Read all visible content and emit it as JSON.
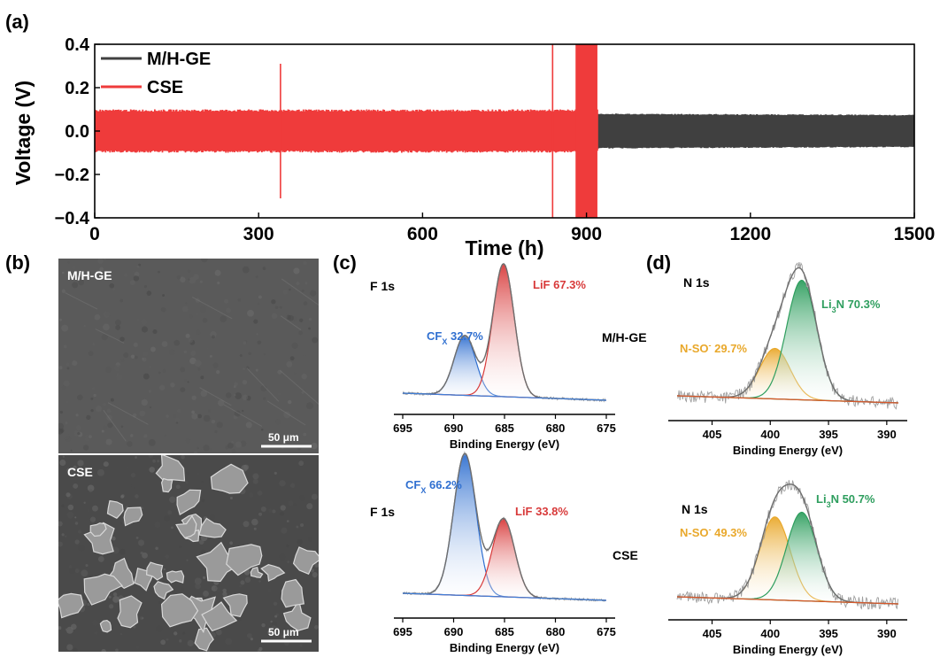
{
  "panel_labels": {
    "a": "(a)",
    "b": "(b)",
    "c": "(c)",
    "d": "(d)"
  },
  "colors": {
    "mhge": "#404040",
    "cse": "#ef3b3b",
    "blue": "#2f6fd0",
    "red": "#d83a3a",
    "orange": "#e9a82b",
    "green": "#2e9e5e",
    "raw": "#9e9e9e",
    "envelope": "#6e6e6e",
    "baseline": "#d9572a",
    "f_base": "#3f7fd8"
  },
  "chart_data": [
    {
      "type": "line",
      "panel": "(a)",
      "xlabel": "Time (h)",
      "ylabel": "Voltage (V)",
      "xlim": [
        0,
        1500
      ],
      "ylim": [
        -0.4,
        0.4
      ],
      "xticks": [
        "0",
        "300",
        "600",
        "900",
        "1200",
        "1500"
      ],
      "yticks": [
        "0.4",
        "0.2",
        "0.0",
        "−0.2",
        "−0.4"
      ],
      "legend_position": "top-left",
      "series": [
        {
          "name": "M/H-GE",
          "color": "#404040",
          "x": [
            0,
            1500
          ],
          "amplitude": [
            0.09,
            0.075
          ]
        },
        {
          "name": "CSE",
          "color": "#ef3b3b",
          "x": [
            0,
            920
          ],
          "amplitude": [
            0.1,
            0.1
          ],
          "spikes": [
            {
              "x": 340,
              "y": 0.31
            },
            {
              "x": 838,
              "y": 0.42
            },
            {
              "x": 895,
              "y": 0.42
            }
          ]
        }
      ]
    },
    {
      "type": "image",
      "panel": "(b)",
      "images": [
        {
          "label": "M/H-GE",
          "scale_bar": "50 μm"
        },
        {
          "label": "CSE",
          "scale_bar": "50 μm"
        }
      ]
    },
    {
      "type": "line",
      "panel": "(c)",
      "xlabel": "Binding Energy (eV)",
      "xlim": [
        695,
        675
      ],
      "xticks": [
        "695",
        "690",
        "685",
        "680",
        "675"
      ],
      "spectra": [
        {
          "sample": "M/H-GE",
          "core": "F 1s",
          "peaks": [
            {
              "label": "CF",
              "sub": "X",
              "percent": "32.7%",
              "center": 688.9,
              "height": 0.45,
              "color": "#2f6fd0"
            },
            {
              "label": "LiF",
              "percent": "67.3%",
              "center": 685.1,
              "height": 1.0,
              "color": "#d83a3a"
            }
          ]
        },
        {
          "sample": "CSE",
          "core": "F 1s",
          "peaks": [
            {
              "label": "CF",
              "sub": "X",
              "percent": "66.2%",
              "center": 688.9,
              "height": 1.0,
              "color": "#2f6fd0"
            },
            {
              "label": "LiF",
              "percent": "33.8%",
              "center": 685.1,
              "height": 0.55,
              "color": "#d83a3a"
            }
          ]
        }
      ]
    },
    {
      "type": "line",
      "panel": "(d)",
      "xlabel": "Binding Energy (eV)",
      "xlim": [
        408,
        389
      ],
      "xticks": [
        "405",
        "400",
        "395",
        "390"
      ],
      "spectra": [
        {
          "sample": "M/H-GE",
          "core": "N 1s",
          "peaks": [
            {
              "label": "N-SO",
              "sup": "-",
              "percent": "29.7%",
              "center": 399.6,
              "height": 0.38,
              "color": "#e9a82b"
            },
            {
              "label": "Li",
              "sub": "3",
              "tail": "N",
              "percent": "70.3%",
              "center": 397.3,
              "height": 0.9,
              "color": "#2e9e5e"
            }
          ]
        },
        {
          "sample": "CSE",
          "core": "N 1s",
          "peaks": [
            {
              "label": "N-SO",
              "sup": "-",
              "percent": "49.3%",
              "center": 399.6,
              "height": 0.75,
              "color": "#e9a82b"
            },
            {
              "label": "Li",
              "sub": "3",
              "tail": "N",
              "percent": "50.7%",
              "center": 397.3,
              "height": 0.8,
              "color": "#2e9e5e"
            }
          ]
        }
      ]
    }
  ],
  "sample_names": {
    "top": "M/H-GE",
    "bottom": "CSE"
  }
}
